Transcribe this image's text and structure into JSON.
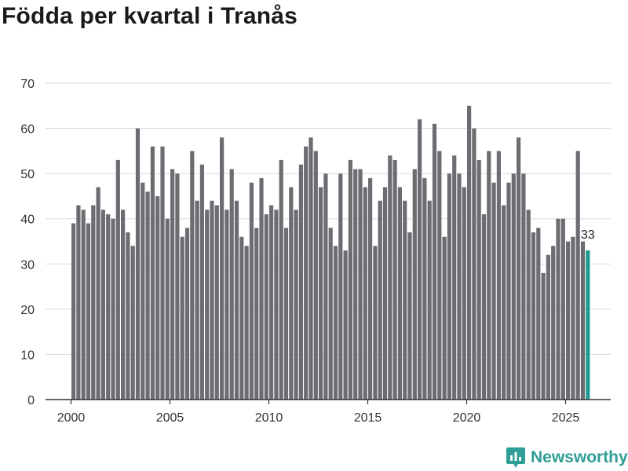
{
  "title": "Födda per kvartal i Tranås",
  "brand": {
    "name": "Newsworthy",
    "icon": "newsworthy-logo-icon",
    "color": "#2f9e96"
  },
  "colors": {
    "bar": "#6d6c72",
    "highlight": "#1f9a93",
    "grid": "#d9d9d9",
    "axis": "#333333"
  },
  "chart_data": {
    "type": "bar",
    "title": "Födda per kvartal i Tranås",
    "xlabel": "",
    "ylabel": "",
    "ylim": [
      0,
      70
    ],
    "yticks": [
      0,
      10,
      20,
      30,
      40,
      50,
      60,
      70
    ],
    "x_tick_years": [
      2000,
      2005,
      2010,
      2015,
      2020,
      2025
    ],
    "start_year": 2000,
    "start_quarter": 1,
    "last_value_label": "33",
    "values": [
      39,
      43,
      42,
      39,
      43,
      47,
      42,
      41,
      40,
      53,
      42,
      37,
      34,
      60,
      48,
      46,
      56,
      45,
      56,
      40,
      51,
      50,
      36,
      38,
      55,
      44,
      52,
      42,
      44,
      43,
      58,
      42,
      51,
      44,
      36,
      34,
      48,
      38,
      49,
      41,
      43,
      42,
      53,
      38,
      47,
      42,
      52,
      56,
      58,
      55,
      47,
      50,
      38,
      34,
      50,
      33,
      53,
      51,
      51,
      47,
      49,
      34,
      44,
      47,
      54,
      53,
      47,
      44,
      37,
      51,
      62,
      49,
      44,
      61,
      55,
      36,
      50,
      54,
      50,
      47,
      65,
      60,
      53,
      41,
      55,
      48,
      55,
      43,
      48,
      50,
      58,
      50,
      42,
      37,
      38,
      28,
      32,
      34,
      40,
      40,
      35,
      36,
      55,
      35,
      33
    ]
  }
}
